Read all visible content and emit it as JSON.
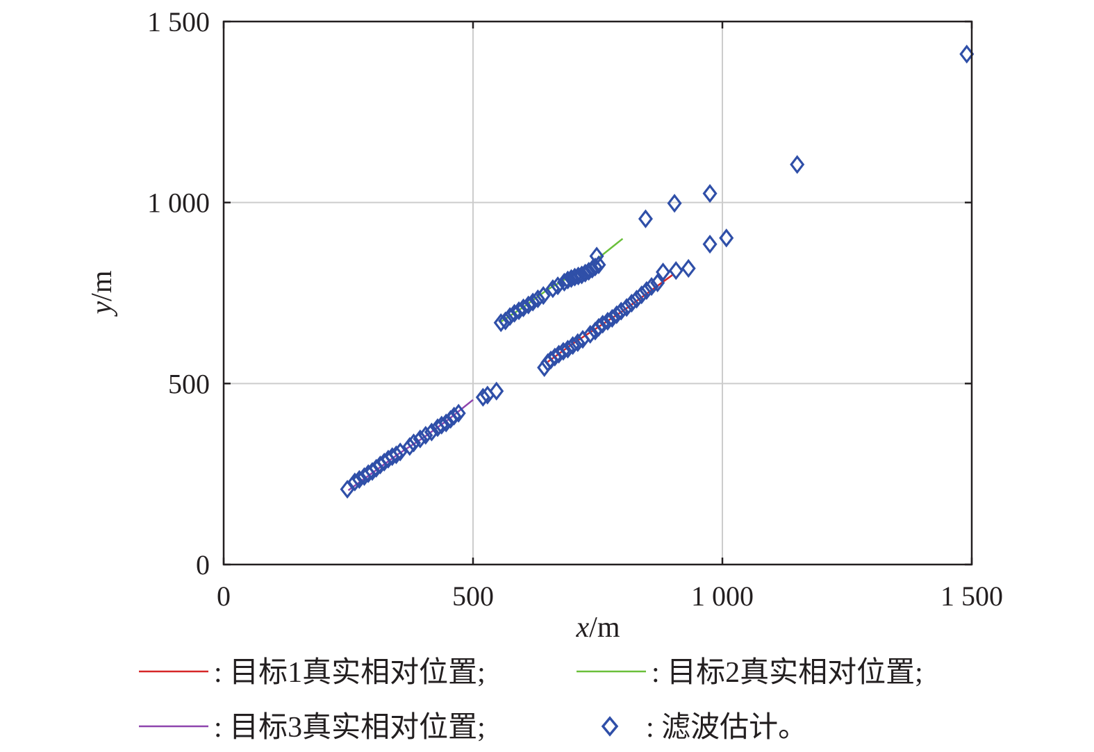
{
  "chart_data": {
    "type": "scatter",
    "title": "",
    "xlabel": {
      "var": "x",
      "unit": "/m"
    },
    "ylabel": {
      "var": "y",
      "unit": "/m"
    },
    "xlim": [
      0,
      1500
    ],
    "ylim": [
      0,
      1500
    ],
    "xticks": [
      0,
      500,
      1000,
      1500
    ],
    "yticks": [
      0,
      500,
      1000,
      1500
    ],
    "xtick_labels": [
      "0",
      "500",
      "1 000",
      "1 500"
    ],
    "ytick_labels": [
      "0",
      "500",
      "1 000",
      "1 500"
    ],
    "grid": true,
    "legend_position": "bottom",
    "lines": [
      {
        "name": "目标1真实相对位置",
        "legend_label": ": 目标1真实相对位置;",
        "color": "#d62728",
        "x": [
          650,
          700,
          750,
          800,
          850,
          900
        ],
        "y": [
          560,
          610,
          655,
          700,
          750,
          800
        ]
      },
      {
        "name": "目标2真实相对位置",
        "legend_label": ": 目标2真实相对位置;",
        "color": "#6abf3a",
        "x": [
          555,
          600,
          650,
          700,
          750,
          800
        ],
        "y": [
          670,
          710,
          760,
          800,
          845,
          900
        ]
      },
      {
        "name": "目标3真实相对位置",
        "legend_label": ": 目标3真实相对位置;",
        "color": "#8e44ad",
        "x": [
          250,
          300,
          350,
          400,
          450,
          500
        ],
        "y": [
          205,
          255,
          305,
          350,
          400,
          455
        ]
      }
    ],
    "markers": {
      "name": "滤波估计",
      "legend_label": ": 滤波估计。",
      "color": "#2f4fa8",
      "points": [
        [
          248,
          208
        ],
        [
          263,
          228
        ],
        [
          272,
          235
        ],
        [
          282,
          243
        ],
        [
          290,
          251
        ],
        [
          298,
          257
        ],
        [
          306,
          266
        ],
        [
          314,
          275
        ],
        [
          322,
          283
        ],
        [
          330,
          291
        ],
        [
          338,
          298
        ],
        [
          346,
          303
        ],
        [
          354,
          311
        ],
        [
          373,
          326
        ],
        [
          381,
          336
        ],
        [
          394,
          347
        ],
        [
          405,
          357
        ],
        [
          417,
          366
        ],
        [
          429,
          378
        ],
        [
          437,
          385
        ],
        [
          446,
          391
        ],
        [
          455,
          401
        ],
        [
          462,
          410
        ],
        [
          471,
          418
        ],
        [
          520,
          462
        ],
        [
          529,
          468
        ],
        [
          547,
          479
        ],
        [
          556,
          668
        ],
        [
          565,
          673
        ],
        [
          574,
          685
        ],
        [
          583,
          694
        ],
        [
          592,
          701
        ],
        [
          601,
          709
        ],
        [
          611,
          717
        ],
        [
          620,
          725
        ],
        [
          630,
          734
        ],
        [
          641,
          743
        ],
        [
          660,
          762
        ],
        [
          670,
          770
        ],
        [
          683,
          780
        ],
        [
          690,
          786
        ],
        [
          697,
          790
        ],
        [
          704,
          794
        ],
        [
          711,
          797
        ],
        [
          718,
          800
        ],
        [
          725,
          805
        ],
        [
          732,
          810
        ],
        [
          739,
          816
        ],
        [
          745,
          822
        ],
        [
          752,
          828
        ],
        [
          748,
          852
        ],
        [
          643,
          544
        ],
        [
          650,
          558
        ],
        [
          656,
          565
        ],
        [
          664,
          573
        ],
        [
          672,
          581
        ],
        [
          681,
          589
        ],
        [
          690,
          595
        ],
        [
          700,
          605
        ],
        [
          710,
          613
        ],
        [
          720,
          622
        ],
        [
          735,
          636
        ],
        [
          745,
          645
        ],
        [
          752,
          655
        ],
        [
          760,
          664
        ],
        [
          770,
          672
        ],
        [
          779,
          680
        ],
        [
          788,
          690
        ],
        [
          797,
          700
        ],
        [
          808,
          710
        ],
        [
          818,
          722
        ],
        [
          828,
          733
        ],
        [
          838,
          745
        ],
        [
          848,
          757
        ],
        [
          858,
          768
        ],
        [
          870,
          778
        ],
        [
          881,
          808
        ],
        [
          907,
          812
        ],
        [
          932,
          818
        ],
        [
          846,
          955
        ],
        [
          904,
          998
        ],
        [
          975,
          1025
        ],
        [
          975,
          885
        ],
        [
          1008,
          902
        ],
        [
          1150,
          1105
        ],
        [
          1490,
          1410
        ]
      ]
    }
  }
}
